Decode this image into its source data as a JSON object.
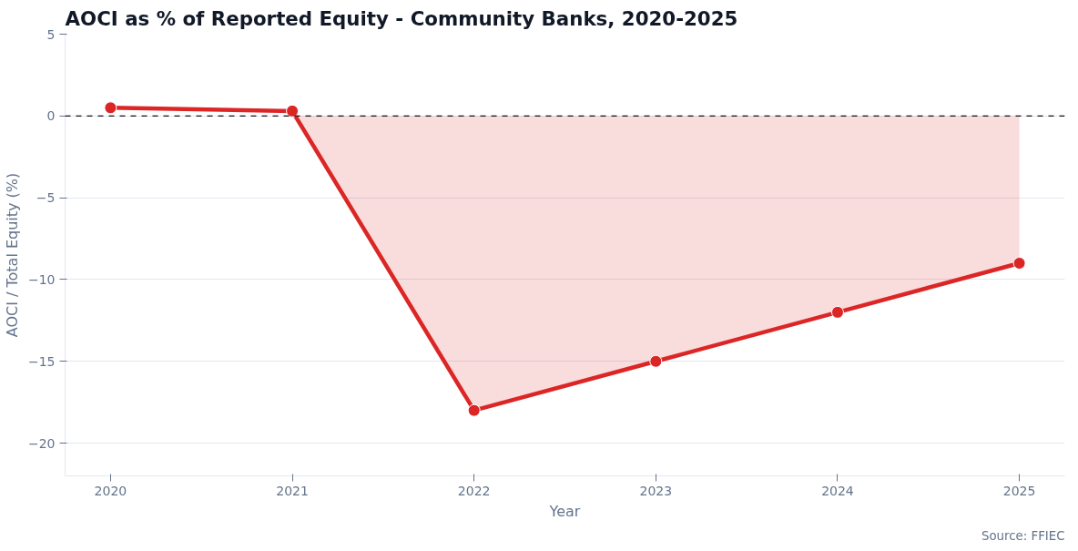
{
  "chart_data": {
    "type": "line",
    "title": "AOCI as % of Reported Equity - Community Banks, 2020-2025",
    "xlabel": "Year",
    "ylabel": "AOCI / Total Equity (%)",
    "x": [
      2020,
      2021,
      2022,
      2023,
      2024,
      2025
    ],
    "series": [
      {
        "color": "#dc2626",
        "marker": "circle",
        "values": [
          0.5,
          0.3,
          -18,
          -15,
          -12,
          -9
        ]
      },
      {
        "type": "area",
        "color": "#dc2626",
        "values": [
          null,
          0,
          -18,
          -15,
          -12,
          -9
        ]
      }
    ],
    "xlim": [
      2019.75,
      2025.25
    ],
    "xticks": [
      2020,
      2021,
      2022,
      2023,
      2024,
      2025
    ],
    "ylim": [
      -22,
      5
    ],
    "yticks": [
      -20,
      -15,
      -10,
      -5,
      0,
      5
    ],
    "ref_lines": [
      {
        "axis": "y",
        "value": 0,
        "color": "#111111",
        "line_style": "dashed"
      }
    ],
    "grid": "y",
    "line_style": "solid",
    "annotations": [
      "Source: FFIEC"
    ]
  }
}
